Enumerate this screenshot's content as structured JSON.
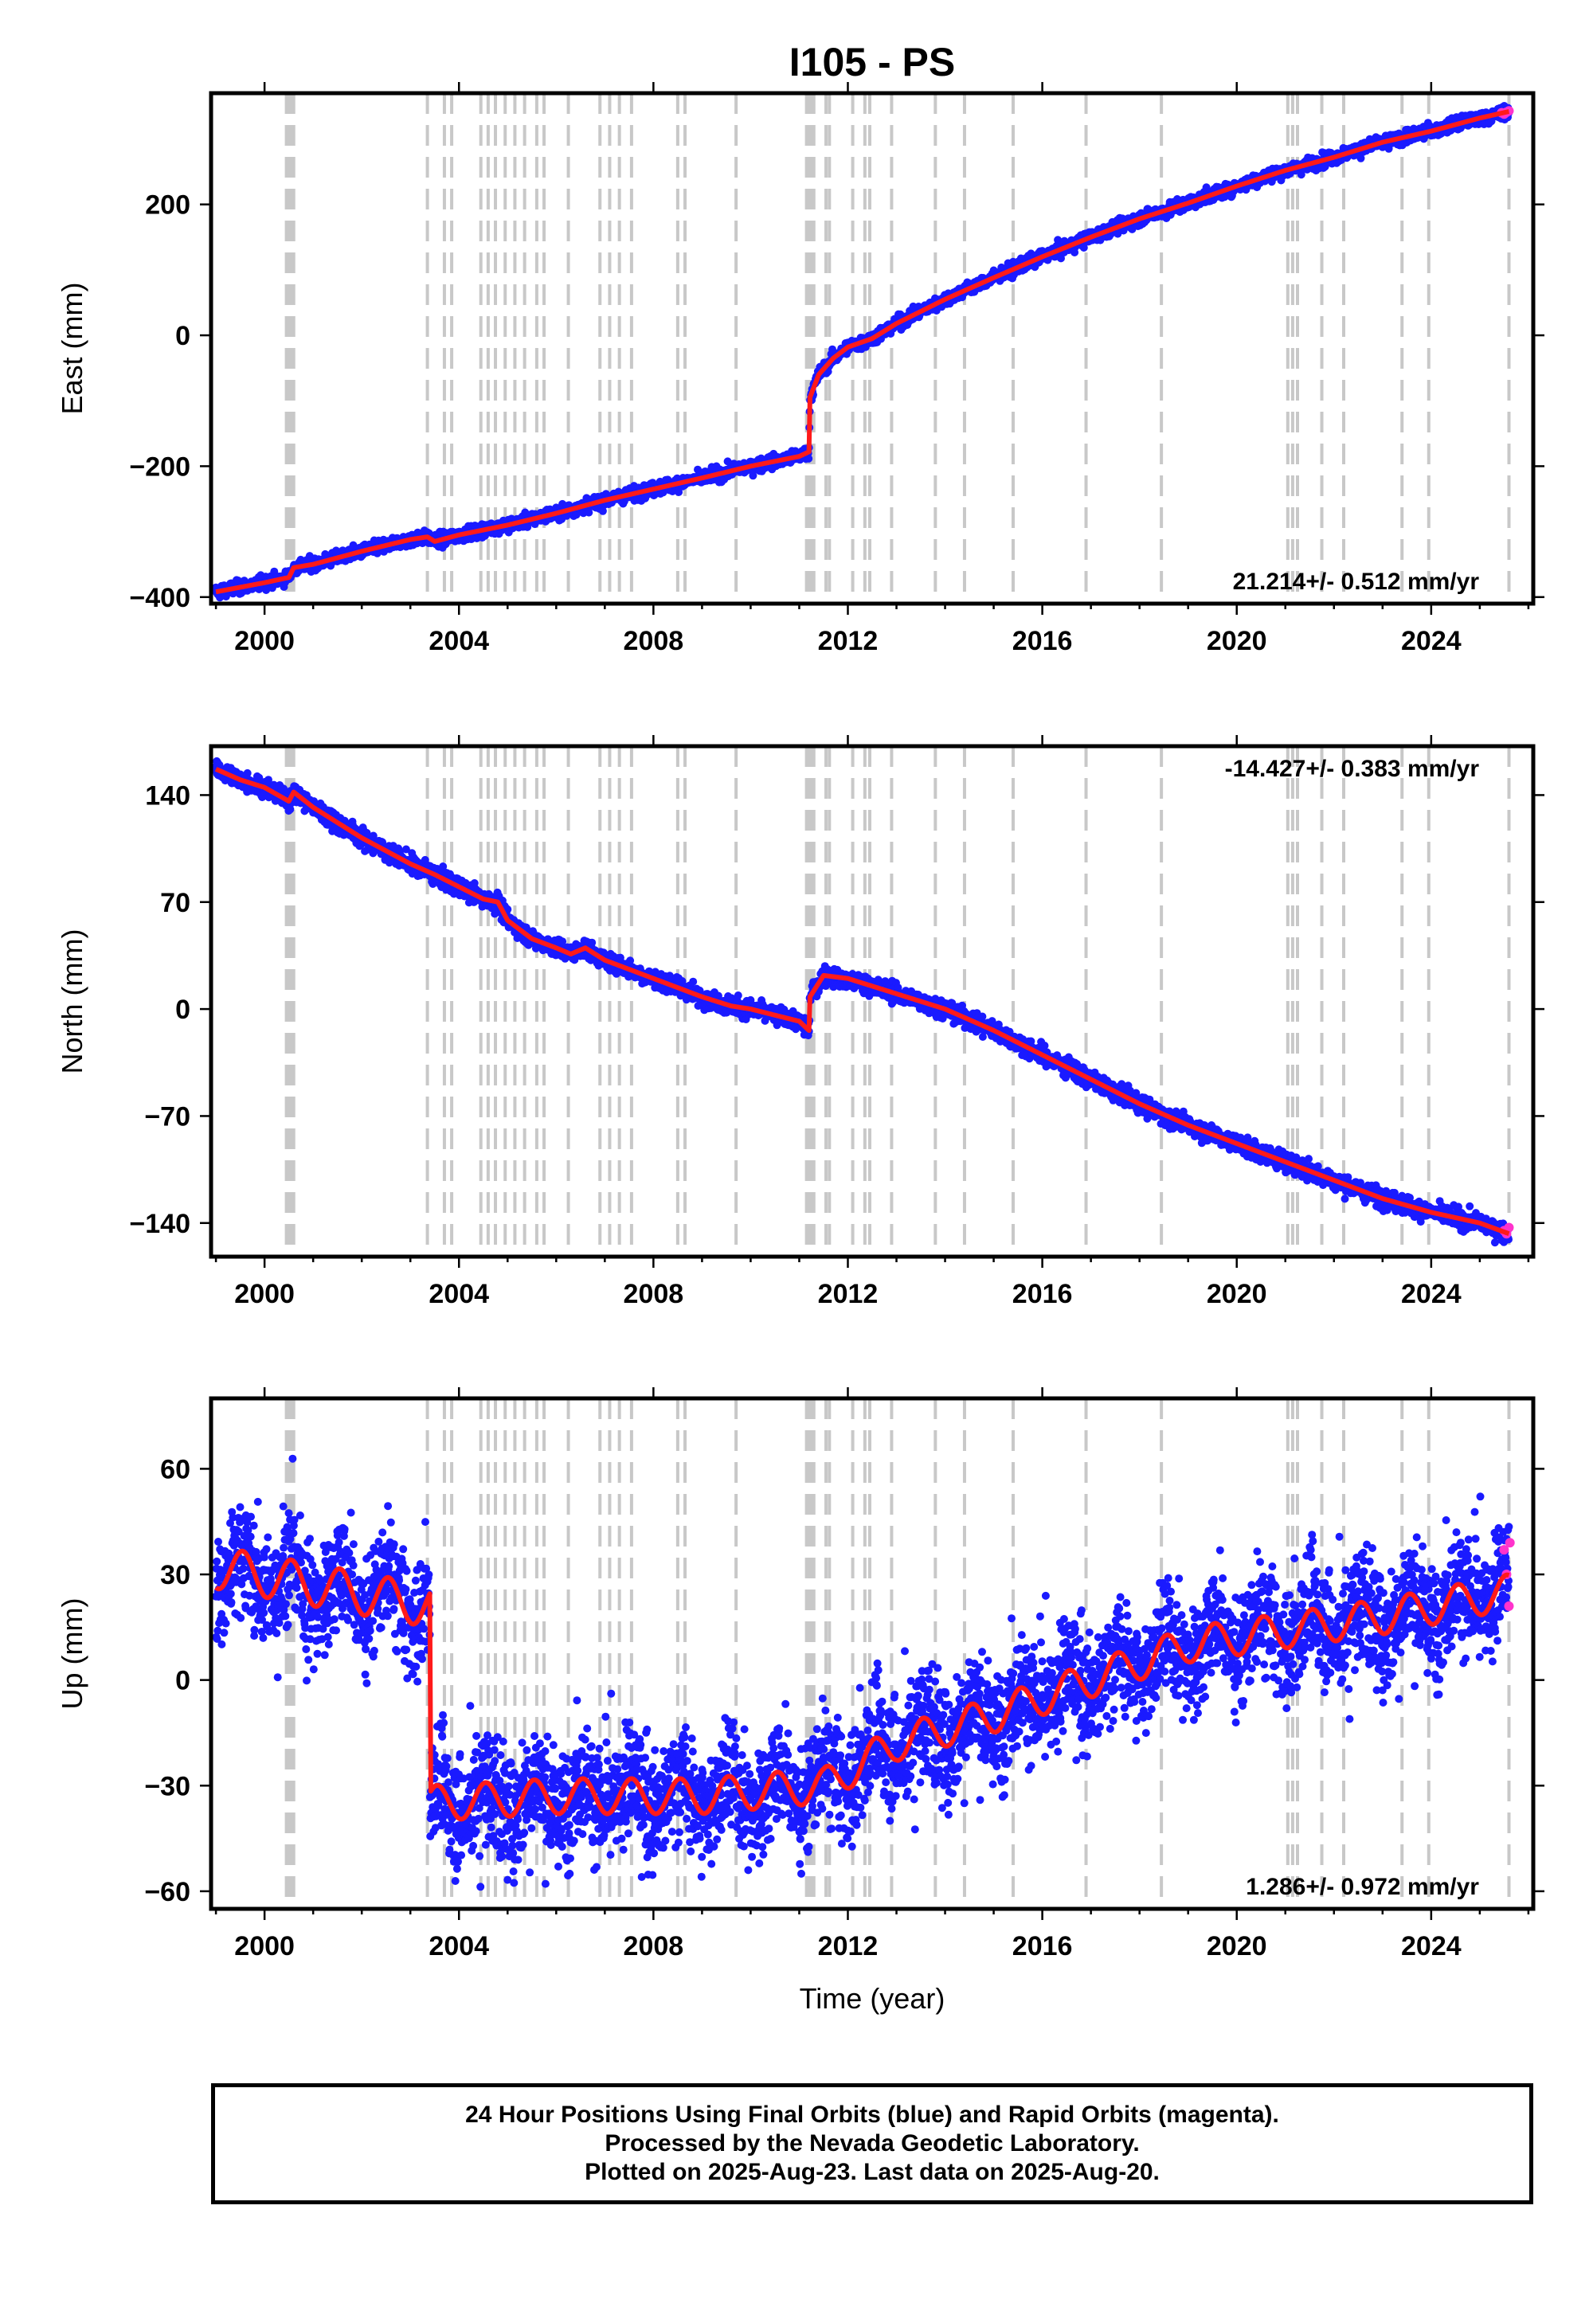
{
  "chart_data": {
    "type": "scatter",
    "title": "I105 - PS",
    "xlabel": "Time (year)",
    "xlim": [
      1998.9,
      2026.1
    ],
    "x_ticks": [
      2000,
      2004,
      2008,
      2012,
      2016,
      2020,
      2024
    ],
    "x_tick_labels": [
      "2000",
      "2004",
      "2008",
      "2012",
      "2016",
      "2020",
      "2024"
    ],
    "grid": false,
    "event_lines": [
      2000.45,
      2000.48,
      2000.52,
      2000.55,
      2000.6,
      2003.35,
      2003.7,
      2003.85,
      2004.45,
      2004.6,
      2004.75,
      2004.95,
      2005.15,
      2005.35,
      2005.6,
      2005.75,
      2006.25,
      2006.9,
      2007.1,
      2007.3,
      2007.55,
      2008.5,
      2008.65,
      2009.7,
      2011.15,
      2011.2,
      2011.25,
      2011.3,
      2011.55,
      2011.62,
      2012.1,
      2012.35,
      2012.45,
      2012.9,
      2013.8,
      2014.4,
      2015.4,
      2016.9,
      2018.45,
      2021.05,
      2021.15,
      2021.25,
      2021.75,
      2022.2,
      2023.4,
      2023.95,
      2025.6
    ],
    "series_styles": {
      "final_orbits": "#1a1aff",
      "rapid_orbits": "#ff33cc",
      "model": "#ff1a1a"
    },
    "panels": [
      {
        "key": "east",
        "ylabel": "East (mm)",
        "ylim": [
          -410,
          370
        ],
        "y_ticks": [
          -400,
          -200,
          0,
          200
        ],
        "y_tick_labels": [
          "−400",
          "−200",
          "0",
          "200"
        ],
        "rate_label": "21.214+/- 0.512 mm/yr",
        "rate_position": "bottom-right",
        "scatter_spread": 5,
        "model": {
          "x": [
            1999.0,
            2000.0,
            2000.5,
            2000.6,
            2001.0,
            2002.0,
            2003.0,
            2003.35,
            2003.5,
            2004.0,
            2005.0,
            2006.0,
            2007.0,
            2008.0,
            2009.0,
            2010.0,
            2011.0,
            2011.2,
            2011.22,
            2011.4,
            2011.7,
            2012.0,
            2012.5,
            2013.0,
            2014.0,
            2015.0,
            2016.0,
            2017.0,
            2018.0,
            2019.0,
            2020.0,
            2021.0,
            2022.0,
            2023.0,
            2024.0,
            2025.0,
            2025.6
          ],
          "y": [
            -392,
            -378,
            -370,
            -355,
            -350,
            -330,
            -312,
            -308,
            -315,
            -305,
            -290,
            -272,
            -252,
            -235,
            -218,
            -200,
            -185,
            -178,
            -95,
            -60,
            -35,
            -18,
            -5,
            18,
            55,
            88,
            120,
            150,
            178,
            202,
            228,
            252,
            272,
            295,
            312,
            332,
            342
          ]
        },
        "rapid_points": {
          "x": [
            2025.45,
            2025.5,
            2025.55,
            2025.6
          ],
          "y": [
            340,
            338,
            341,
            343
          ]
        }
      },
      {
        "key": "north",
        "ylabel": "North (mm)",
        "ylim": [
          -162,
          172
        ],
        "y_ticks": [
          -140,
          -70,
          0,
          70,
          140
        ],
        "y_tick_labels": [
          "−140",
          "−70",
          "0",
          "70",
          "140"
        ],
        "rate_label": "-14.427+/- 0.383 mm/yr",
        "rate_position": "top-right",
        "scatter_spread": 3,
        "model": {
          "x": [
            1999.0,
            1999.5,
            2000.0,
            2000.5,
            2000.6,
            2001.0,
            2002.0,
            2003.0,
            2003.5,
            2004.0,
            2004.5,
            2004.8,
            2005.0,
            2005.5,
            2006.0,
            2006.3,
            2006.6,
            2007.0,
            2008.0,
            2009.0,
            2009.6,
            2010.0,
            2011.0,
            2011.2,
            2011.22,
            2011.5,
            2012.0,
            2012.5,
            2013.0,
            2014.0,
            2015.0,
            2016.0,
            2017.0,
            2018.0,
            2019.0,
            2020.0,
            2021.0,
            2022.0,
            2023.0,
            2024.0,
            2025.0,
            2025.6
          ],
          "y": [
            157,
            150,
            145,
            136,
            142,
            132,
            112,
            95,
            88,
            80,
            72,
            70,
            58,
            46,
            40,
            36,
            40,
            32,
            20,
            8,
            2,
            0,
            -8,
            -14,
            8,
            22,
            20,
            15,
            10,
            0,
            -14,
            -30,
            -46,
            -62,
            -76,
            -88,
            -100,
            -112,
            -124,
            -133,
            -140,
            -147
          ]
        },
        "rapid_points": {
          "x": [
            2025.5,
            2025.55,
            2025.6
          ],
          "y": [
            -145,
            -147,
            -143
          ]
        }
      },
      {
        "key": "up",
        "ylabel": "Up (mm)",
        "ylim": [
          -65,
          80
        ],
        "y_ticks": [
          -60,
          -30,
          0,
          30,
          60
        ],
        "y_tick_labels": [
          "−60",
          "−30",
          "0",
          "30",
          "60"
        ],
        "rate_label": "1.286+/- 0.972 mm/yr",
        "rate_position": "bottom-right",
        "scatter_spread": 8,
        "model_seasonal": {
          "step_x": 2003.4,
          "before": {
            "mean": 32,
            "amplitude": 6,
            "start": 1999.0,
            "end": 2003.35,
            "trend": -2.5
          },
          "after": [
            {
              "x": 2003.45,
              "mean": -35
            },
            {
              "x": 2006.0,
              "mean": -33
            },
            {
              "x": 2009.0,
              "mean": -33
            },
            {
              "x": 2011.5,
              "mean": -30
            },
            {
              "x": 2013.0,
              "mean": -18
            },
            {
              "x": 2015.0,
              "mean": -10
            },
            {
              "x": 2017.0,
              "mean": 0
            },
            {
              "x": 2019.0,
              "mean": 10
            },
            {
              "x": 2021.0,
              "mean": 14
            },
            {
              "x": 2023.0,
              "mean": 18
            },
            {
              "x": 2025.6,
              "mean": 25
            }
          ],
          "after_amplitude": 5
        },
        "rapid_points": {
          "x": [
            2025.5,
            2025.55,
            2025.6,
            2025.62
          ],
          "y": [
            37,
            30,
            21,
            39
          ]
        }
      }
    ]
  },
  "footer": {
    "line1": "24 Hour Positions Using Final Orbits (blue) and Rapid Orbits (magenta).",
    "line2": "Processed by the Nevada Geodetic Laboratory.",
    "line3": "Plotted on 2025-Aug-23. Last data on 2025-Aug-20."
  }
}
